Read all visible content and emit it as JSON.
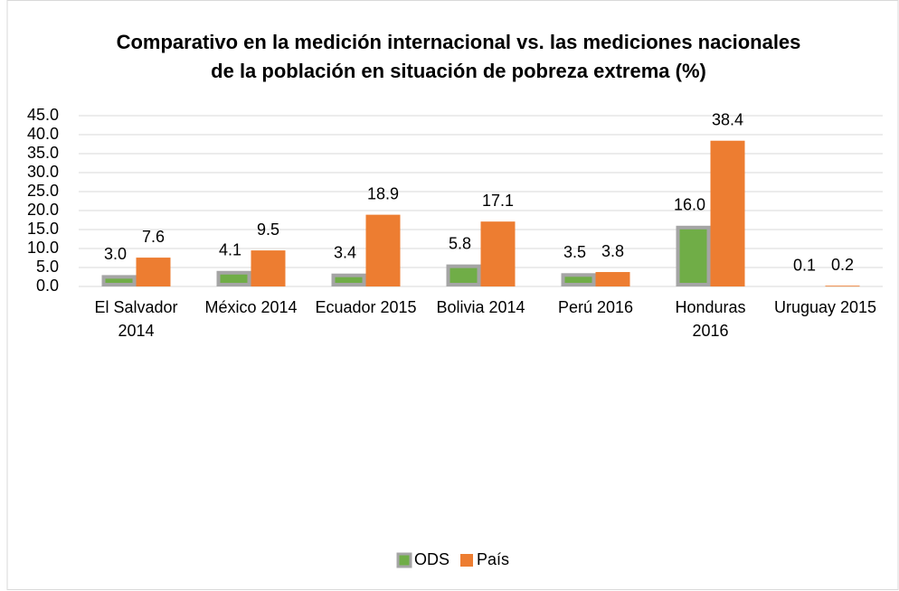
{
  "chart_data": {
    "type": "bar",
    "title": "Comparativo en la medición internacional vs. las mediciones nacionales de la población en situación de pobreza extrema (%)",
    "categories": [
      "El Salvador 2014",
      "México 2014",
      "Ecuador 2015",
      "Bolivia 2014",
      "Perú 2016",
      "Honduras 2016",
      "Uruguay 2015"
    ],
    "series": [
      {
        "name": "ODS",
        "color": "#70ad47",
        "edgecolor": "#a5a5a5",
        "values": [
          3.0,
          4.1,
          3.4,
          5.8,
          3.5,
          16.0,
          0.1
        ],
        "value_labels": [
          "3.0",
          "4.1",
          "3.4",
          "5.8",
          "3.5",
          "16.0",
          "0.1"
        ]
      },
      {
        "name": "País",
        "color": "#ed7d31",
        "values": [
          7.6,
          9.5,
          18.9,
          17.1,
          3.8,
          38.4,
          0.2
        ],
        "value_labels": [
          "7.6",
          "9.5",
          "18.9",
          "17.1",
          "3.8",
          "38.4",
          "0.2"
        ]
      }
    ],
    "ylim": [
      0,
      45
    ],
    "yticks": [
      {
        "value": 0,
        "label": "0.0"
      },
      {
        "value": 5,
        "label": "5.0"
      },
      {
        "value": 10,
        "label": "10.0"
      },
      {
        "value": 15,
        "label": "15.0"
      },
      {
        "value": 20,
        "label": "20.0"
      },
      {
        "value": 25,
        "label": "25.0"
      },
      {
        "value": 30,
        "label": "30.0"
      },
      {
        "value": 35,
        "label": "35.0"
      },
      {
        "value": 40,
        "label": "40.0"
      },
      {
        "value": 45,
        "label": "45.0"
      }
    ],
    "grid": true,
    "legend": "bottom"
  }
}
